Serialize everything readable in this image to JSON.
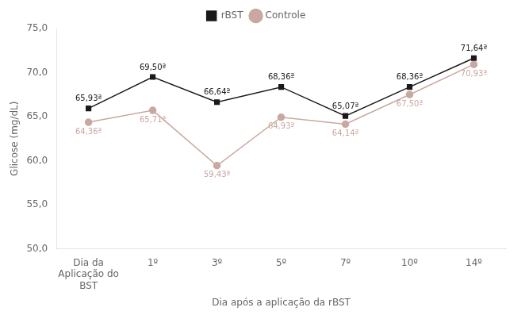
{
  "chart_data": {
    "type": "line",
    "categories": [
      "Dia da\nAplicação do\nBST",
      "1º",
      "3º",
      "5º",
      "7º",
      "10º",
      "14º"
    ],
    "series": [
      {
        "name": "rBST",
        "color": "#1a1a1a",
        "marker": "square",
        "values": [
          65.93,
          69.5,
          66.64,
          68.36,
          65.07,
          68.36,
          71.64
        ],
        "value_labels": [
          "65,93ª",
          "69,50ª",
          "66,64ª",
          "68,36ª",
          "65,07ª",
          "68,36ª",
          "71,64ª"
        ]
      },
      {
        "name": "Controle",
        "color": "#c8a8a0",
        "marker": "circle",
        "values": [
          64.36,
          65.71,
          59.43,
          64.93,
          64.14,
          67.5,
          70.93
        ],
        "value_labels": [
          "64,36ª",
          "65,71ª",
          "59,43ª",
          "64,93ª",
          "64,14ª",
          "67,50ª",
          "70,93ª"
        ]
      }
    ],
    "ylabel": "Glicose (mg/dL)",
    "xlabel": "Dia após a aplicação da rBST",
    "ylim": [
      50.0,
      75.0
    ],
    "yticks": [
      {
        "value": 50.0,
        "label": "50,0"
      },
      {
        "value": 55.0,
        "label": "55,0"
      },
      {
        "value": 60.0,
        "label": "60,0"
      },
      {
        "value": 65.0,
        "label": "65,0"
      },
      {
        "value": 70.0,
        "label": "70,0"
      },
      {
        "value": 75.0,
        "label": "75,0"
      }
    ],
    "grid": false,
    "legend": "top",
    "data_labels": true
  }
}
